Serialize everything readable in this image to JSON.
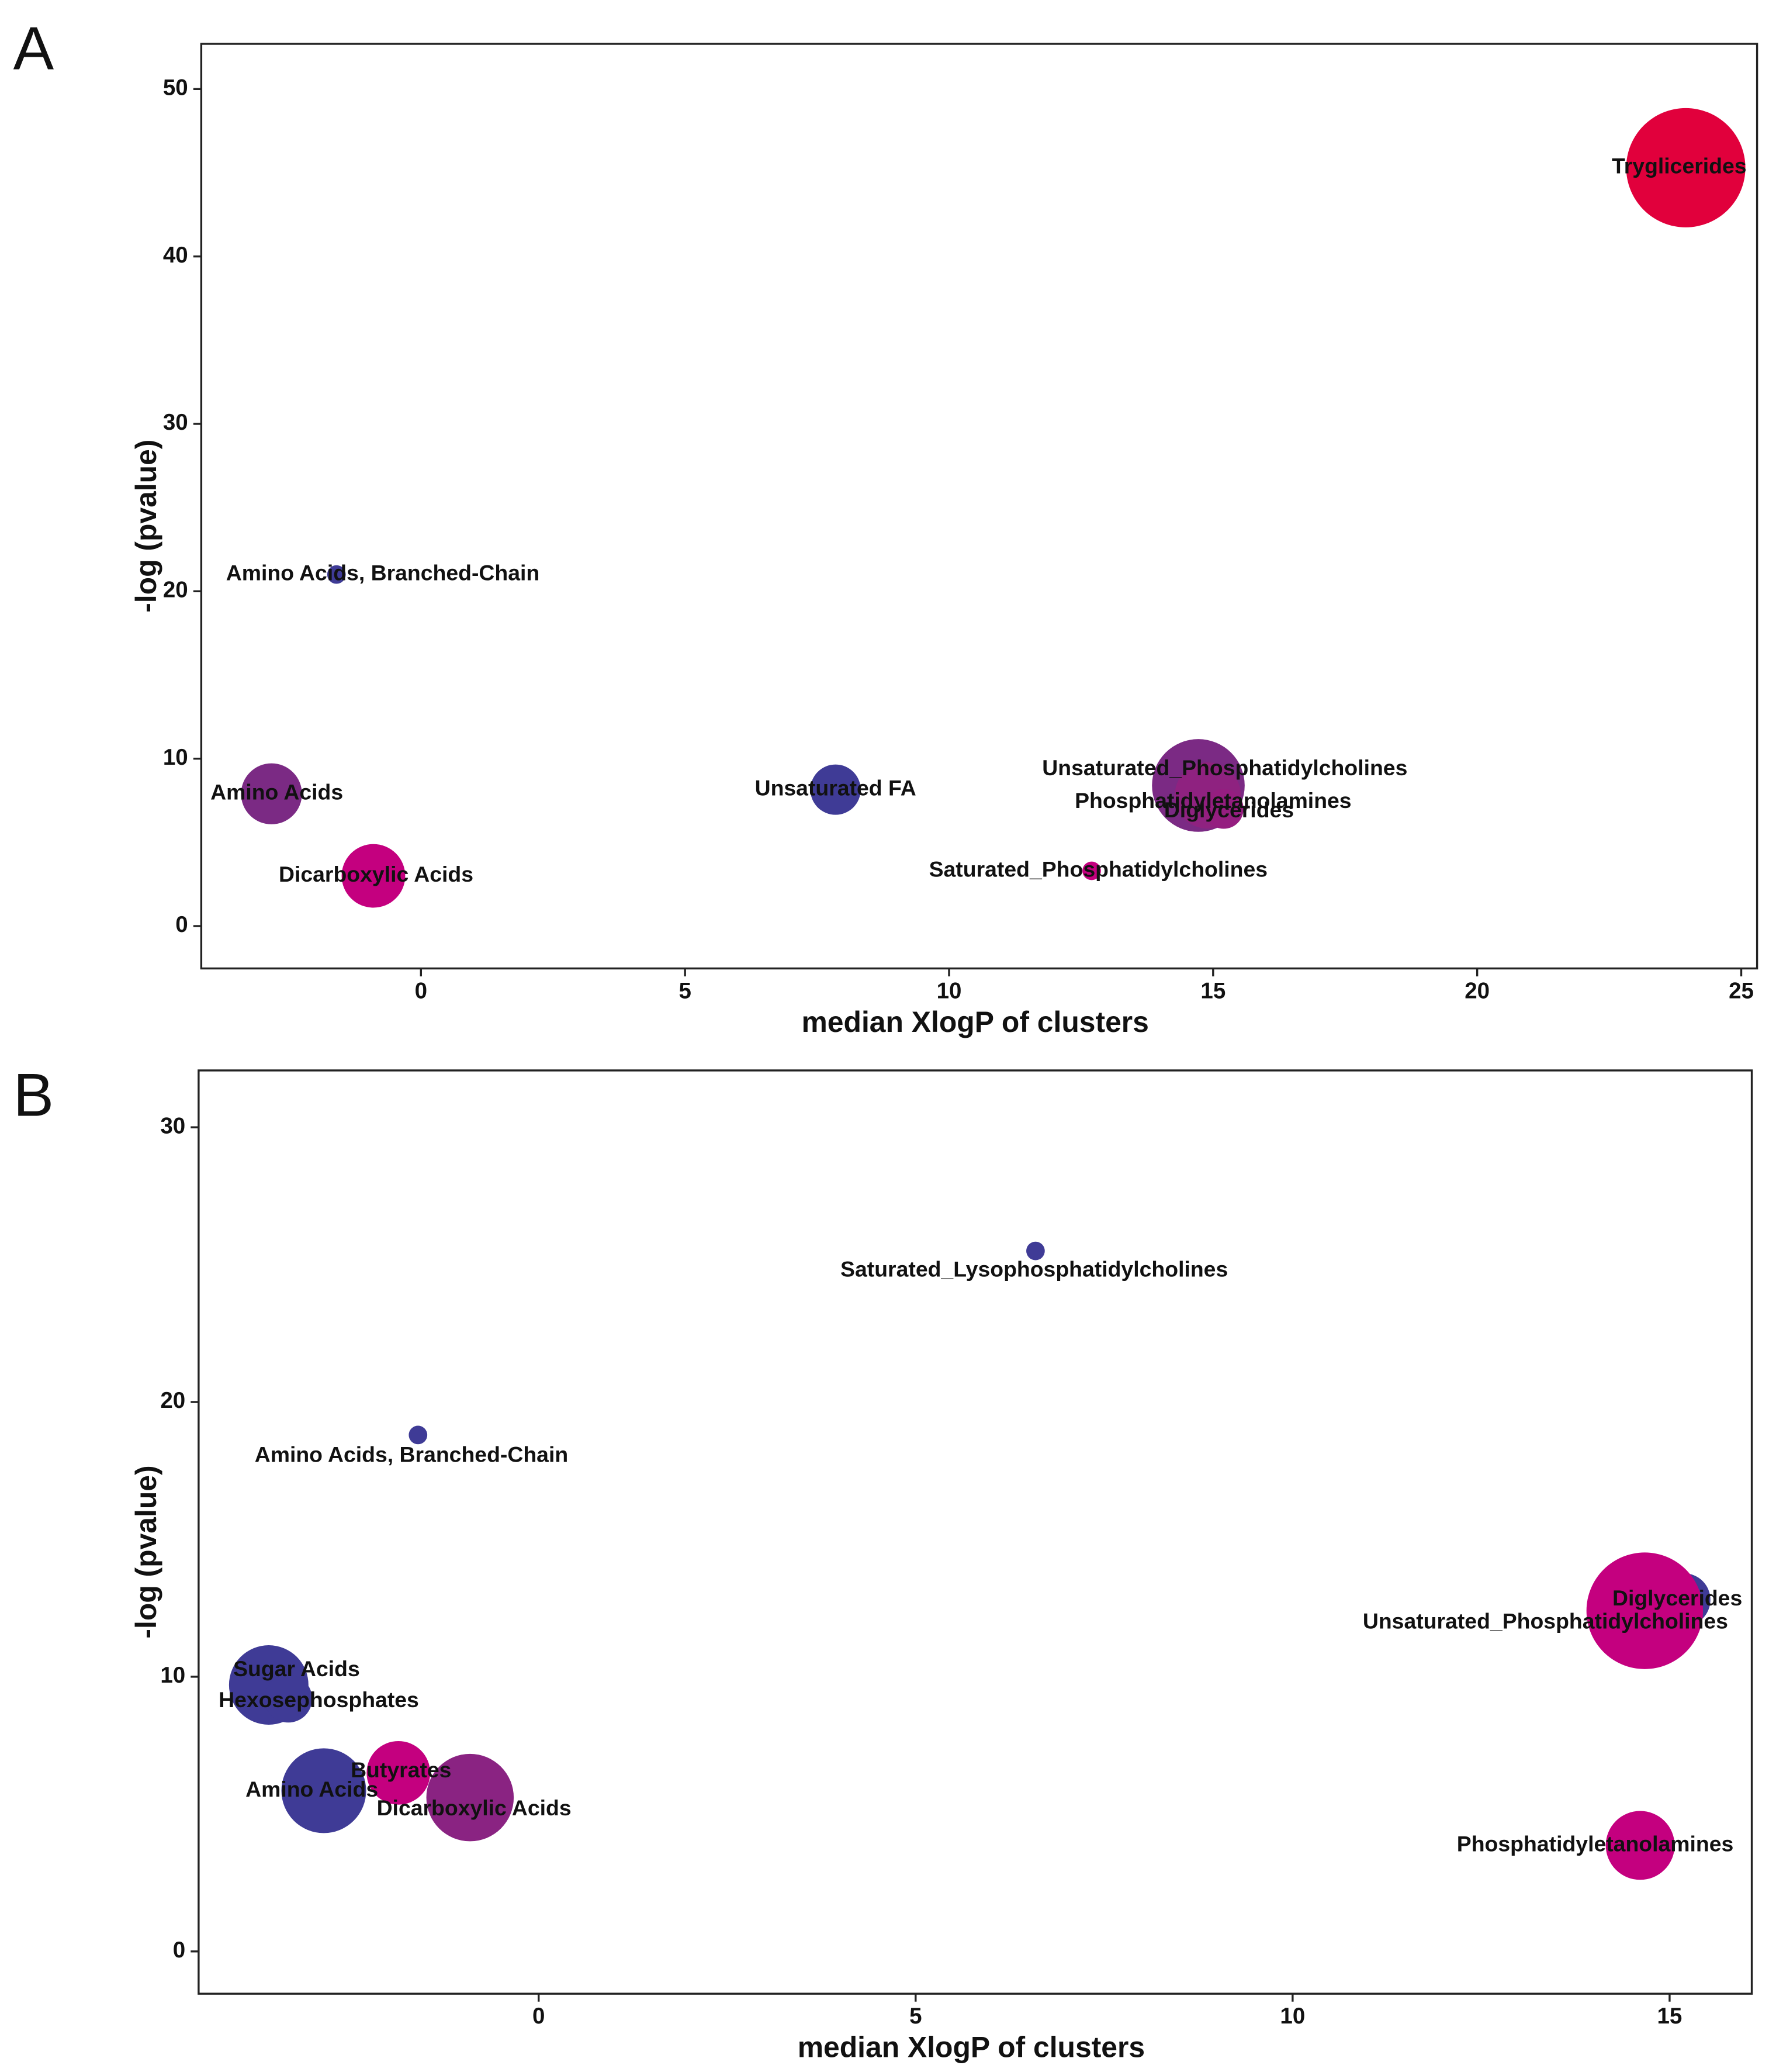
{
  "chart_data": [
    {
      "type": "bubble",
      "panel": "A",
      "x_label": "median XlogP of clusters",
      "y_label": "-log (pvalue)",
      "xlim": [
        -4.16,
        25.3
      ],
      "ylim": [
        -2.53,
        52.7
      ],
      "xticks": [
        0,
        5,
        10,
        15,
        20,
        25
      ],
      "yticks": [
        0,
        10,
        20,
        30,
        40,
        50
      ],
      "labels": [
        "Tryglicerides",
        "Amino Acids, Branched-Chain",
        "Amino Acids",
        "Dicarboxylic Acids",
        "Unsaturated FA",
        "Unsaturated_Phosphatidylcholines",
        "Phosphatidyletanolamines",
        "Diglycerides",
        "Saturated_Phosphatidylcholines"
      ],
      "x": [
        23.95,
        -1.6,
        -2.83,
        -0.9,
        7.85,
        14.72,
        14.9,
        15.2,
        12.7
      ],
      "values": [
        45.3,
        21.0,
        7.9,
        3.0,
        8.15,
        8.4,
        7.8,
        7.0,
        3.3
      ],
      "sizes": [
        45,
        7,
        23,
        24,
        19,
        35,
        25,
        15,
        7
      ],
      "colors": [
        "#e1003c",
        "#3f3b96",
        "#7b2a84",
        "#c4007f",
        "#3f3b96",
        "#7b2a84",
        "#8f2280",
        "#951e80",
        "#c4007f"
      ]
    },
    {
      "type": "bubble",
      "panel": "B",
      "x_label": "median XlogP of clusters",
      "y_label": "-log (pvalue)",
      "xlim": [
        -4.51,
        16.09
      ],
      "ylim": [
        -1.54,
        32.07
      ],
      "xticks": [
        0,
        5,
        10,
        15
      ],
      "yticks": [
        0,
        10,
        20,
        30
      ],
      "labels": [
        "Saturated_Lysophosphatidylcholines",
        "Amino Acids, Branched-Chain",
        "Sugar Acids",
        "Hexosephosphates",
        "Butyrates",
        "Amino Acids",
        "Dicarboxylic Acids",
        "Diglycerides",
        "Unsaturated_Phosphatidylcholines",
        "Phosphatidyletanolamines"
      ],
      "x": [
        6.59,
        -1.6,
        -3.58,
        -3.32,
        -1.86,
        -2.85,
        -0.91,
        15.19,
        14.67,
        14.61
      ],
      "values": [
        25.5,
        18.8,
        9.7,
        9.2,
        6.5,
        5.85,
        5.6,
        12.8,
        12.4,
        3.86
      ],
      "sizes": [
        7,
        7,
        30,
        18,
        24,
        32,
        33,
        20,
        44,
        26
      ],
      "colors": [
        "#3f3b96",
        "#3f3b96",
        "#3f3b96",
        "#3f3b96",
        "#c4007f",
        "#3f3b96",
        "#8a2382",
        "#3f3b96",
        "#c4007f",
        "#c4007f"
      ]
    }
  ]
}
